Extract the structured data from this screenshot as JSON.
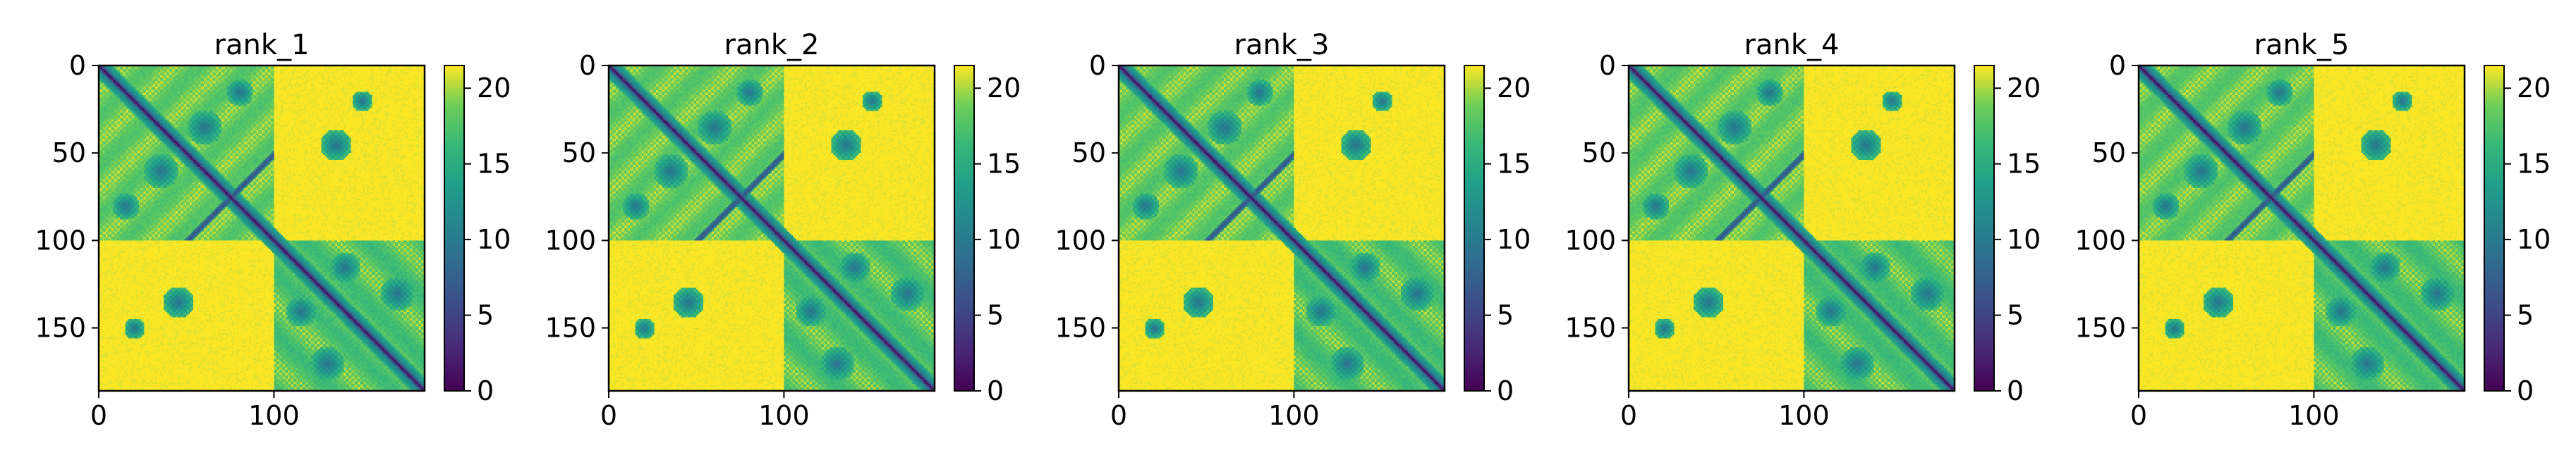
{
  "chart_data": [
    {
      "type": "heatmap",
      "title": "rank_1",
      "n": 186,
      "heatmap_seed": 11,
      "x_ticks": [
        0,
        100
      ],
      "y_ticks": [
        0,
        50,
        100,
        150
      ],
      "colorbar": {
        "range": [
          0,
          21.5
        ],
        "ticks": [
          0,
          5,
          10,
          15,
          20
        ],
        "colormap": "viridis"
      }
    },
    {
      "type": "heatmap",
      "title": "rank_2",
      "n": 186,
      "heatmap_seed": 23,
      "x_ticks": [
        0,
        100
      ],
      "y_ticks": [
        0,
        50,
        100,
        150
      ],
      "colorbar": {
        "range": [
          0,
          21.5
        ],
        "ticks": [
          0,
          5,
          10,
          15,
          20
        ],
        "colormap": "viridis"
      }
    },
    {
      "type": "heatmap",
      "title": "rank_3",
      "n": 186,
      "heatmap_seed": 37,
      "x_ticks": [
        0,
        100
      ],
      "y_ticks": [
        0,
        50,
        100,
        150
      ],
      "colorbar": {
        "range": [
          0,
          21.5
        ],
        "ticks": [
          0,
          5,
          10,
          15,
          20
        ],
        "colormap": "viridis"
      }
    },
    {
      "type": "heatmap",
      "title": "rank_4",
      "n": 186,
      "heatmap_seed": 41,
      "x_ticks": [
        0,
        100
      ],
      "y_ticks": [
        0,
        50,
        100,
        150
      ],
      "colorbar": {
        "range": [
          0,
          21.5
        ],
        "ticks": [
          0,
          5,
          10,
          15,
          20
        ],
        "colormap": "viridis"
      }
    },
    {
      "type": "heatmap",
      "title": "rank_5",
      "n": 186,
      "heatmap_seed": 53,
      "x_ticks": [
        0,
        100
      ],
      "y_ticks": [
        0,
        50,
        100,
        150
      ],
      "colorbar": {
        "range": [
          0,
          21.5
        ],
        "ticks": [
          0,
          5,
          10,
          15,
          20
        ],
        "colormap": "viridis"
      }
    }
  ]
}
